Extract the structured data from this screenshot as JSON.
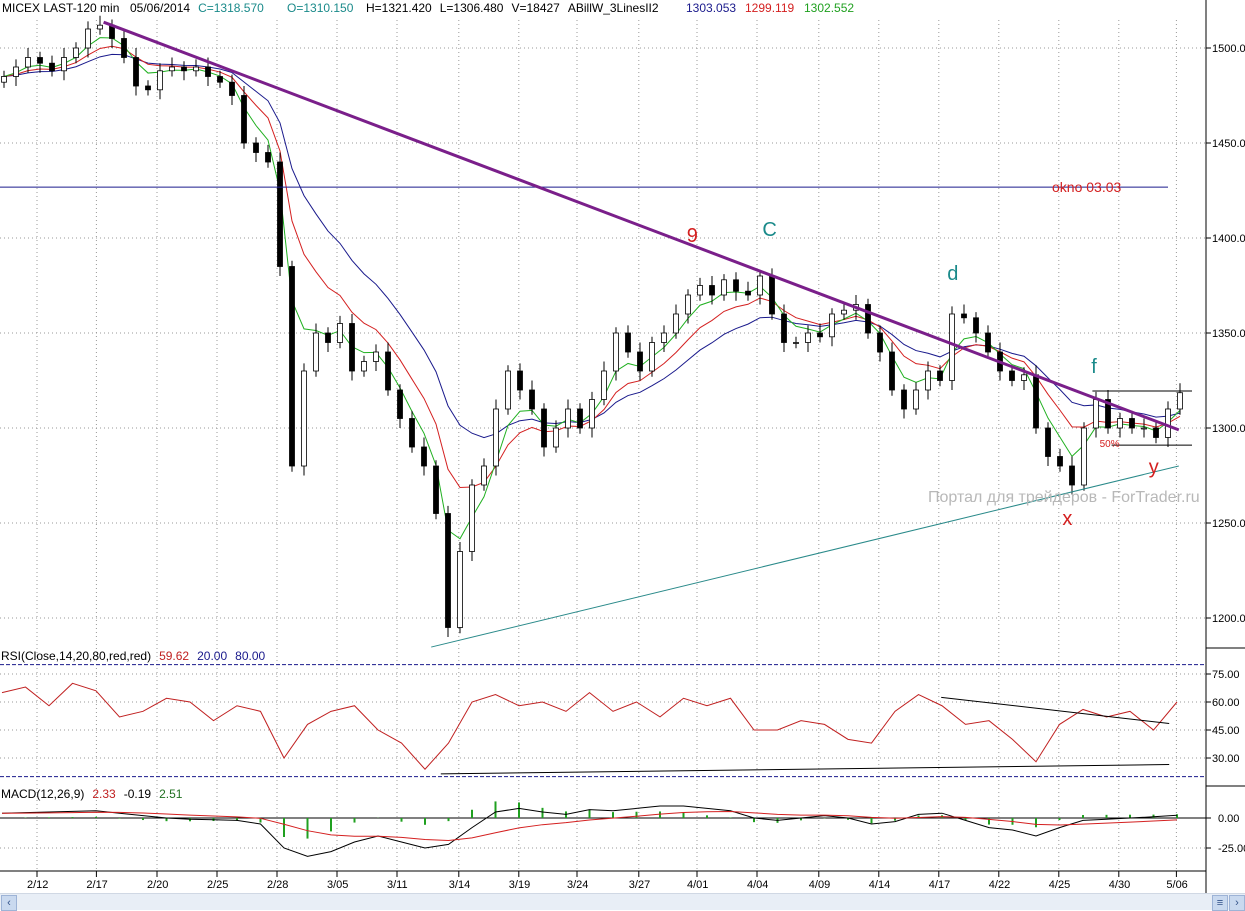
{
  "header": {
    "symbol": "MICEX LAST-120 min",
    "date": "05/06/2014",
    "close": "C=1318.570",
    "open": "O=1310.150",
    "high": "H=1321.420",
    "low": "L=1306.480",
    "volume": "V=18427",
    "indicator": "ABillW_3LinesII2",
    "line1": "1303.053",
    "line2": "1299.119",
    "line3": "1302.552"
  },
  "colors": {
    "line1": "#1a1a8c",
    "line2": "#d42020",
    "line3": "#20b020",
    "trend": "#7a1f8a",
    "support": "#2a8a8a",
    "level": "#1a1a8c"
  },
  "watermark": "Портал для трейдеров - ForTrader.ru",
  "chart_data": [
    {
      "type": "candlestick",
      "title": "MICEX LAST-120 min",
      "ylim": [
        1180,
        1525
      ],
      "yticks": [
        "1500.00",
        "1450.00",
        "1400.00",
        "1350.00",
        "1300.00",
        "1250.00",
        "1200.00"
      ],
      "ytick_values": [
        1500,
        1450,
        1400,
        1350,
        1300,
        1250,
        1200
      ],
      "x_labels": [
        "2/12",
        "2/17",
        "2/20",
        "2/25",
        "2/28",
        "3/05",
        "3/11",
        "3/14",
        "3/19",
        "3/24",
        "3/27",
        "4/01",
        "4/04",
        "4/09",
        "4/14",
        "4/17",
        "4/22",
        "4/25",
        "4/30",
        "5/06"
      ],
      "x_label_index": [
        2.75,
        7.7,
        12.75,
        17.75,
        22.75,
        27.75,
        32.75,
        37.9,
        42.9,
        47.75,
        52.9,
        57.75,
        62.75,
        67.9,
        72.9,
        77.9,
        82.9,
        87.9,
        92.9,
        97.7
      ],
      "closes": [
        1485,
        1490,
        1495,
        1492,
        1488,
        1495,
        1500,
        1510,
        1512,
        1505,
        1495,
        1480,
        1478,
        1488,
        1490,
        1488,
        1490,
        1485,
        1482,
        1475,
        1450,
        1445,
        1440,
        1385,
        1280,
        1330,
        1350,
        1345,
        1355,
        1330,
        1335,
        1340,
        1320,
        1305,
        1290,
        1280,
        1255,
        1195,
        1235,
        1270,
        1280,
        1310,
        1330,
        1320,
        1310,
        1290,
        1300,
        1310,
        1300,
        1315,
        1330,
        1350,
        1340,
        1330,
        1345,
        1350,
        1360,
        1370,
        1375,
        1370,
        1378,
        1372,
        1370,
        1380,
        1360,
        1345,
        1345,
        1350,
        1348,
        1360,
        1362,
        1365,
        1350,
        1340,
        1320,
        1310,
        1320,
        1330,
        1325,
        1360,
        1358,
        1350,
        1340,
        1330,
        1325,
        1328,
        1300,
        1285,
        1280,
        1270,
        1300,
        1315,
        1300,
        1305,
        1300,
        1300,
        1295,
        1310,
        1318.57
      ],
      "moving_averages": [
        {
          "name": "blue",
          "period": 14
        },
        {
          "name": "red",
          "period": 8
        },
        {
          "name": "green",
          "period": 4
        }
      ],
      "level": {
        "price": 1426.8,
        "label": "okno 03.03"
      },
      "trendline": {
        "from": [
          8.3,
          1513.6
        ],
        "to": [
          97.9,
          1299
        ]
      },
      "support": {
        "from": [
          35.6,
          1184.7
        ],
        "to": [
          97.9,
          1280
        ]
      },
      "box_lines": [
        {
          "from": 90.7,
          "to": 99,
          "price": 1319.5
        },
        {
          "from": 92.3,
          "to": 99,
          "price": 1291
        }
      ],
      "annotations": [
        {
          "text": "9",
          "x": 56.9,
          "price": 1398,
          "color": "#d42020"
        },
        {
          "text": "C",
          "x": 63.2,
          "price": 1401,
          "color": "#1a8a8a"
        },
        {
          "text": "d",
          "x": 78.6,
          "price": 1378,
          "color": "#1a8a8a"
        },
        {
          "text": "f",
          "x": 90.6,
          "price": 1329,
          "color": "#1a8a8a"
        },
        {
          "text": "x",
          "x": 88.2,
          "price": 1249,
          "color": "#d42020"
        },
        {
          "text": "y",
          "x": 95.4,
          "price": 1276,
          "color": "#d42020"
        },
        {
          "text": "50%",
          "x": 91.3,
          "price": 1290,
          "color": "#d42020",
          "small": true
        }
      ]
    },
    {
      "type": "line",
      "title": "RSI(Close,14,20,80,red,red)",
      "values_label": [
        "59.62",
        "20.00",
        "80.00"
      ],
      "ylim": [
        14,
        82
      ],
      "yticks": [
        "75.00",
        "60.00",
        "45.00",
        "30.00"
      ],
      "ytick_values": [
        75,
        60,
        45,
        30
      ],
      "levels": [
        20,
        80
      ],
      "series": [
        65,
        68,
        58,
        70,
        66,
        52,
        55,
        62,
        60,
        50,
        58,
        55,
        30,
        48,
        55,
        58,
        45,
        38,
        24,
        38,
        60,
        64,
        58,
        60,
        55,
        65,
        55,
        60,
        52,
        62,
        58,
        62,
        45,
        45,
        50,
        48,
        40,
        38,
        55,
        64,
        58,
        48,
        50,
        40,
        28,
        48,
        56,
        52,
        55,
        45,
        60
      ],
      "lines": [
        {
          "from": [
            78.1,
            62.5
          ],
          "to": [
            97.1,
            48.5
          ]
        },
        {
          "from": [
            36.4,
            21.5
          ],
          "to": [
            97.1,
            26.5
          ]
        }
      ]
    },
    {
      "type": "line",
      "title": "MACD(12,26,9)",
      "values_label": [
        "2.33",
        "-0.19",
        "2.51"
      ],
      "ylim": [
        -38,
        26
      ],
      "yticks": [
        "0.00",
        "-25.00"
      ],
      "ytick_values": [
        0,
        -25
      ],
      "macd": [
        4,
        4.5,
        5,
        5.5,
        6,
        4,
        2,
        0,
        -1,
        -1.5,
        -2,
        -5,
        -25,
        -32,
        -28,
        -20,
        -15,
        -20,
        -25,
        -22,
        -8,
        5,
        8,
        5,
        3,
        7,
        6,
        8,
        10,
        10,
        8,
        6,
        0,
        -2,
        0,
        2,
        0,
        -5,
        -3,
        3,
        4,
        -2,
        -8,
        -10,
        -15,
        -8,
        -2,
        -1,
        0,
        1,
        2.33
      ]
    }
  ]
}
